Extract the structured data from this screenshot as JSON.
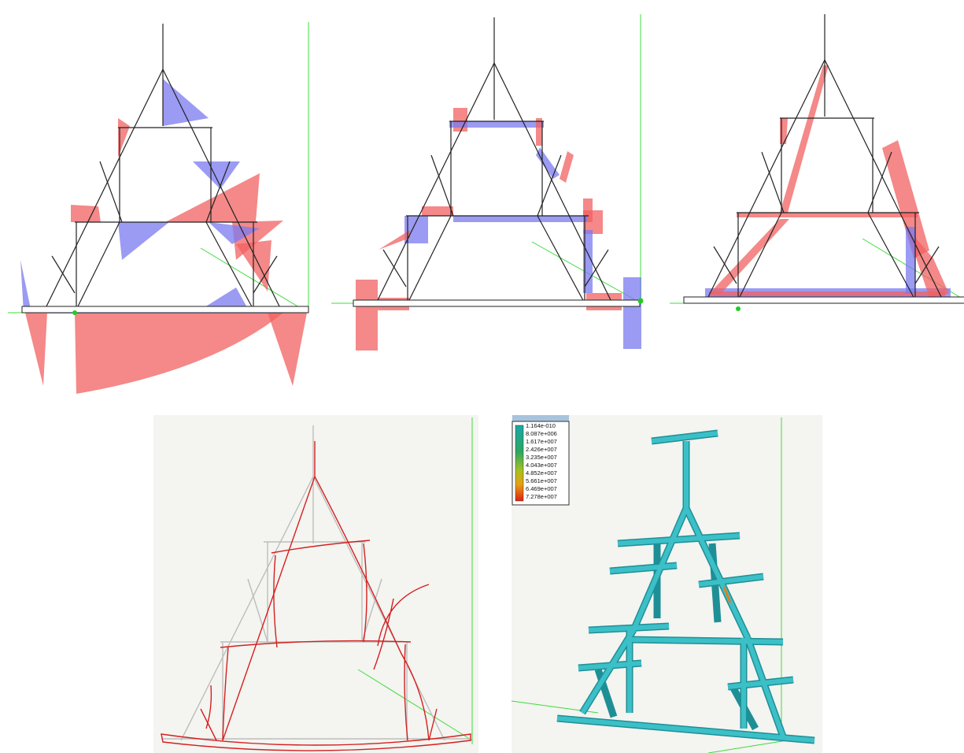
{
  "legend": {
    "labels": [
      "1.164e-010",
      "8.087e+006",
      "1.617e+007",
      "2.426e+007",
      "3.235e+007",
      "4.043e+007",
      "4.852e+007",
      "5.661e+007",
      "6.469e+007",
      "7.278e+007"
    ]
  }
}
